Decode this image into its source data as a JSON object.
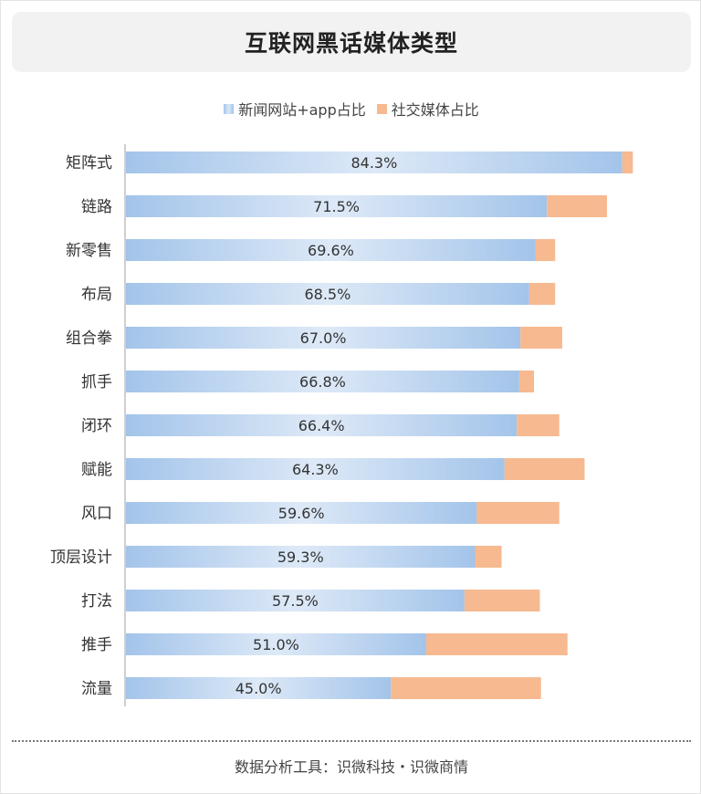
{
  "title": "互联网黑话媒体类型",
  "legend": {
    "news": "新闻网站+app占比",
    "social": "社交媒体占比"
  },
  "footer": "数据分析工具：识微科技・识微商情",
  "colors": {
    "news": "#a3c4ea",
    "news_light": "#dde9f7",
    "social": "#f6b990",
    "axis": "#bfbfbf"
  },
  "chart_data": {
    "type": "bar",
    "orientation": "horizontal",
    "stacked": true,
    "categories": [
      "矩阵式",
      "链路",
      "新零售",
      "布局",
      "组合拳",
      "抓手",
      "闭环",
      "赋能",
      "风口",
      "顶层设计",
      "打法",
      "推手",
      "流量"
    ],
    "series": [
      {
        "name": "新闻网站+app占比",
        "values": [
          84.3,
          71.5,
          69.6,
          68.5,
          67.0,
          66.8,
          66.4,
          64.3,
          59.6,
          59.3,
          57.5,
          51.0,
          45.0
        ],
        "labels": [
          "84.3%",
          "71.5%",
          "69.6%",
          "68.5%",
          "67.0%",
          "66.8%",
          "66.4%",
          "64.3%",
          "59.6%",
          "59.3%",
          "57.5%",
          "51.0%",
          "45.0%"
        ]
      },
      {
        "name": "社交媒体占比",
        "values": [
          1.8,
          10.2,
          3.3,
          4.4,
          7.1,
          2.5,
          7.2,
          13.6,
          14.0,
          4.5,
          12.8,
          24.0,
          25.5
        ]
      }
    ],
    "xlim": [
      0,
      100
    ],
    "grid": false,
    "legend_position": "top-center"
  }
}
